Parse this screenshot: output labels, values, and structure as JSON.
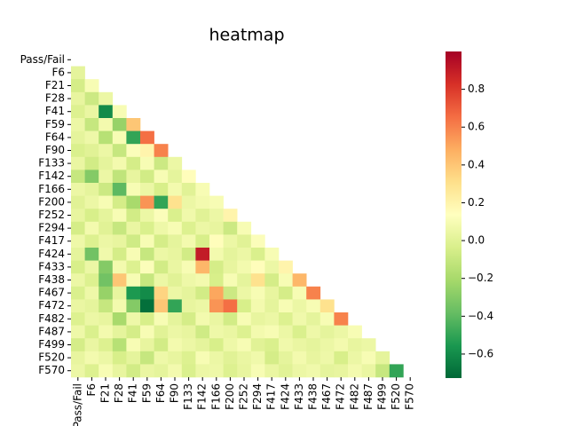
{
  "chart_data": {
    "type": "heatmap",
    "title": "heatmap",
    "categories": [
      "Pass/Fail",
      "F6",
      "F21",
      "F28",
      "F41",
      "F59",
      "F64",
      "F90",
      "F133",
      "F142",
      "F166",
      "F200",
      "F252",
      "F294",
      "F417",
      "F424",
      "F433",
      "F438",
      "F467",
      "F472",
      "F482",
      "F487",
      "F499",
      "F520",
      "F570"
    ],
    "values": [
      [],
      [
        0.02
      ],
      [
        -0.05,
        0.1
      ],
      [
        0.03,
        -0.08,
        0.05
      ],
      [
        -0.02,
        0.04,
        -0.6,
        0.1
      ],
      [
        0.05,
        -0.1,
        0.08,
        -0.25,
        0.4
      ],
      [
        0.02,
        0.06,
        -0.15,
        0.1,
        -0.5,
        0.65
      ],
      [
        -0.03,
        0.0,
        0.05,
        -0.1,
        0.12,
        0.2,
        0.6
      ],
      [
        0.04,
        -0.06,
        0.02,
        0.08,
        -0.05,
        0.1,
        -0.08,
        0.05
      ],
      [
        -0.1,
        -0.3,
        0.05,
        -0.12,
        0.03,
        -0.06,
        0.1,
        0.02,
        0.15
      ],
      [
        0.05,
        0.02,
        -0.08,
        -0.4,
        0.1,
        0.05,
        -0.04,
        0.08,
        0.0,
        0.1
      ],
      [
        0.0,
        0.05,
        0.1,
        -0.05,
        -0.2,
        0.55,
        -0.5,
        0.3,
        0.05,
        0.08,
        0.1
      ],
      [
        0.03,
        -0.04,
        0.02,
        0.1,
        -0.06,
        0.05,
        0.12,
        -0.03,
        0.07,
        0.0,
        0.05,
        0.2
      ],
      [
        -0.05,
        0.08,
        0.0,
        -0.1,
        0.04,
        -0.03,
        0.06,
        0.1,
        -0.02,
        0.05,
        0.03,
        -0.08,
        0.1
      ],
      [
        0.06,
        -0.02,
        0.05,
        0.03,
        -0.07,
        0.1,
        -0.05,
        0.02,
        0.08,
        -0.04,
        0.15,
        0.05,
        0.0,
        0.12
      ],
      [
        0.02,
        -0.35,
        0.07,
        -0.05,
        0.1,
        -0.1,
        0.05,
        0.03,
        -0.06,
        0.9,
        0.08,
        0.02,
        0.05,
        -0.03,
        0.1
      ],
      [
        -0.04,
        0.05,
        -0.3,
        0.08,
        -0.02,
        0.12,
        -0.06,
        0.04,
        0.1,
        0.45,
        -0.05,
        0.03,
        0.08,
        0.15,
        0.05,
        0.2
      ],
      [
        0.05,
        -0.02,
        -0.35,
        0.4,
        0.1,
        -0.1,
        0.05,
        0.0,
        0.06,
        0.08,
        -0.04,
        0.1,
        0.02,
        0.3,
        -0.05,
        0.1,
        0.45
      ],
      [
        -0.03,
        0.06,
        -0.25,
        0.03,
        -0.55,
        -0.6,
        0.35,
        0.05,
        0.02,
        -0.06,
        0.5,
        -0.08,
        0.05,
        0.1,
        0.03,
        -0.05,
        0.1,
        0.6
      ],
      [
        0.04,
        0.02,
        -0.1,
        0.08,
        -0.3,
        -0.7,
        0.4,
        -0.5,
        0.03,
        0.05,
        0.55,
        0.65,
        -0.04,
        0.08,
        0.02,
        0.1,
        0.05,
        0.1,
        0.3
      ],
      [
        -0.02,
        0.05,
        0.03,
        -0.2,
        0.06,
        -0.04,
        0.1,
        0.02,
        -0.05,
        0.08,
        0.04,
        -0.06,
        0.1,
        0.03,
        0.05,
        -0.02,
        0.07,
        0.02,
        0.1,
        0.6
      ],
      [
        0.06,
        -0.03,
        0.08,
        0.02,
        -0.05,
        0.1,
        0.0,
        0.05,
        0.03,
        -0.07,
        0.06,
        0.04,
        -0.02,
        0.08,
        0.1,
        0.05,
        -0.03,
        0.06,
        0.02,
        0.05,
        0.1
      ],
      [
        -0.05,
        0.04,
        -0.02,
        -0.15,
        0.1,
        0.03,
        -0.06,
        0.08,
        0.05,
        0.02,
        -0.04,
        0.06,
        0.1,
        0.0,
        -0.03,
        0.07,
        0.04,
        0.02,
        0.05,
        0.08,
        0.03,
        0.05
      ],
      [
        0.03,
        0.08,
        0.05,
        -0.04,
        0.02,
        -0.1,
        0.06,
        0.03,
        -0.02,
        0.1,
        0.05,
        0.0,
        0.04,
        0.07,
        -0.05,
        0.02,
        0.08,
        0.03,
        0.06,
        -0.04,
        0.05,
        0.1,
        0.02
      ],
      [
        0.05,
        -0.02,
        0.1,
        0.03,
        -0.06,
        0.04,
        0.02,
        0.08,
        -0.03,
        0.05,
        0.06,
        -0.02,
        0.03,
        0.1,
        0.04,
        0.0,
        0.05,
        0.07,
        0.02,
        0.03,
        0.08,
        0.04,
        -0.1,
        -0.5
      ]
    ],
    "clim": [
      -0.727,
      1.0
    ],
    "colormap": [
      "#006837",
      "#1a9850",
      "#66bd63",
      "#a6d96a",
      "#d9ef8b",
      "#ffffbf",
      "#fee08b",
      "#fdae61",
      "#f46d43",
      "#d73027",
      "#a50026"
    ],
    "cticks": [
      {
        "value": -0.6,
        "label": "−0.6"
      },
      {
        "value": -0.4,
        "label": "−0.4"
      },
      {
        "value": -0.2,
        "label": "−0.2"
      },
      {
        "value": 0.0,
        "label": "0.0"
      },
      0.2,
      0.4,
      0.6,
      0.8
    ]
  }
}
